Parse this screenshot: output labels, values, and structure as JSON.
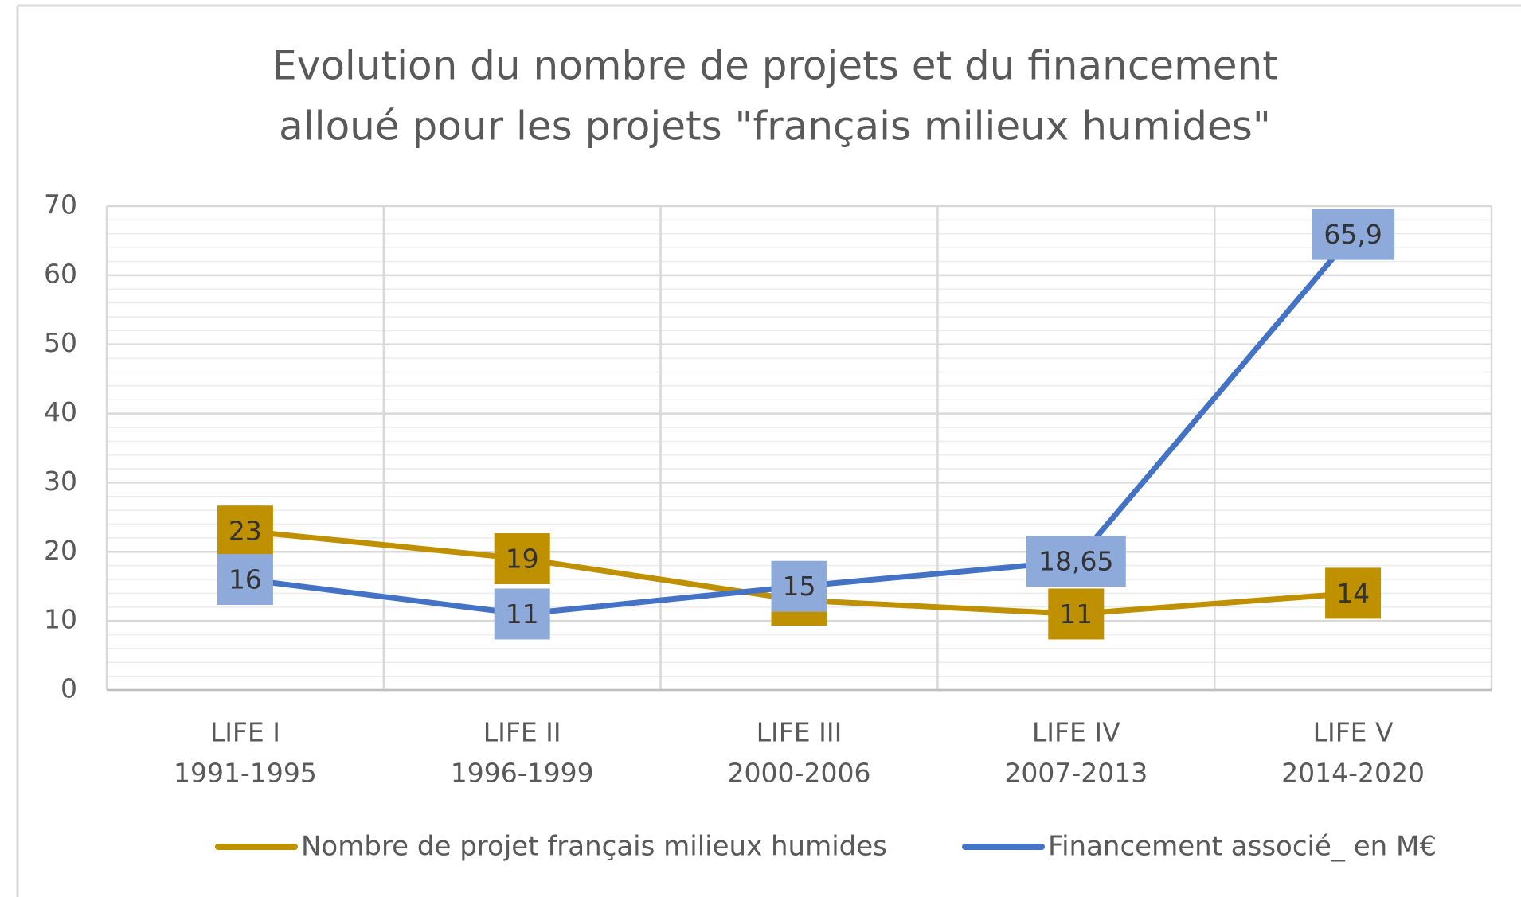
{
  "chart_data": {
    "type": "line",
    "title": [
      "Evolution du nombre de projets et du financement",
      "alloué pour les projets \"français milieux humides\""
    ],
    "categories": [
      [
        "LIFE I",
        "1991-1995"
      ],
      [
        "LIFE II",
        "1996-1999"
      ],
      [
        "LIFE III",
        "2000-2006"
      ],
      [
        "LIFE IV",
        "2007-2013"
      ],
      [
        "LIFE V",
        "2014-2020"
      ]
    ],
    "series": [
      {
        "name": "Nombre de projet français milieux humides",
        "color": "#bf9000",
        "label_color": "#bf9000",
        "values": [
          23,
          19,
          13,
          11,
          14
        ],
        "value_labels": [
          "23",
          "19",
          "13",
          "11",
          "14"
        ]
      },
      {
        "name": "Financement associé_ en M€",
        "color": "#4472c4",
        "label_color": "#8eaadb",
        "values": [
          16,
          11,
          15,
          18.65,
          65.9
        ],
        "value_labels": [
          "16",
          "11",
          "15",
          "18,65",
          "65,9"
        ]
      }
    ],
    "ylim": [
      0,
      70
    ],
    "yticks": [
      0,
      10,
      20,
      30,
      40,
      50,
      60,
      70
    ],
    "grid": true,
    "minor_grid": true,
    "legend": "bottom"
  }
}
